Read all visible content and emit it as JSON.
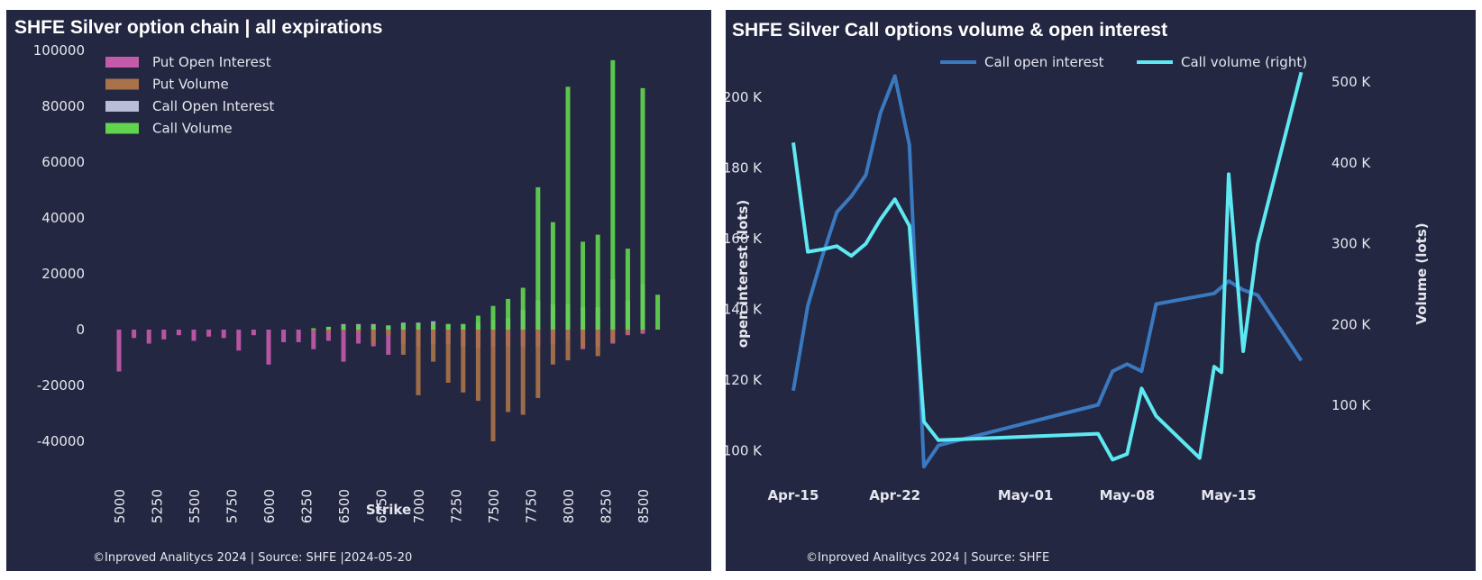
{
  "colors": {
    "background": "#232741",
    "put_open_interest": "#c45aa8",
    "put_volume": "#a8724a",
    "call_open_interest": "#b9bdd8",
    "call_volume": "#61d34e",
    "call_open_interest_line": "#3a78c0",
    "call_volume_line": "#5ee8f2"
  },
  "chart_data": [
    {
      "type": "bar",
      "title": "SHFE Silver option chain | all expirations",
      "xlabel": "Strike",
      "footer": "©Inproved Analitycs 2024 | Source: SHFE |2024-05-20",
      "ylim": [
        -50000,
        100000
      ],
      "y_ticks": [
        100000,
        80000,
        60000,
        40000,
        20000,
        0,
        -20000,
        -40000
      ],
      "x_ticks": [
        5000,
        5250,
        5500,
        5750,
        6000,
        6250,
        6500,
        6750,
        7000,
        7250,
        7500,
        7750,
        8000,
        8250,
        8500
      ],
      "legend_position": "top-left",
      "strikes": [
        5000,
        5100,
        5200,
        5300,
        5400,
        5500,
        5600,
        5700,
        5800,
        5900,
        6000,
        6100,
        6200,
        6300,
        6400,
        6500,
        6600,
        6700,
        6800,
        6900,
        7000,
        7100,
        7200,
        7300,
        7400,
        7500,
        7600,
        7700,
        7800,
        7900,
        8000,
        8100,
        8200,
        8300,
        8400,
        8500,
        8600
      ],
      "series": [
        {
          "name": "Put Open Interest",
          "values": [
            -15000,
            -3000,
            -5000,
            -3500,
            -2000,
            -4000,
            -2500,
            -3000,
            -7500,
            -2000,
            -12500,
            -4500,
            -4500,
            -7000,
            -4000,
            -11500,
            -5000,
            -6000,
            -9000,
            -5000,
            -6000,
            -5000,
            -5000,
            -6000,
            -6500,
            -6000,
            -6000,
            -6000,
            -6000,
            -5000,
            -4000,
            -7000,
            -6000,
            -5000,
            -2000,
            -1500,
            0
          ]
        },
        {
          "name": "Put Volume",
          "values": [
            0,
            0,
            0,
            0,
            0,
            0,
            0,
            0,
            0,
            0,
            0,
            0,
            0,
            -500,
            -1000,
            -500,
            -1000,
            -5000,
            -2000,
            -9000,
            -23500,
            -11500,
            -19000,
            -22500,
            -25500,
            -40000,
            -29500,
            -30500,
            -24500,
            -12500,
            -11000,
            -6500,
            -9500,
            -4500,
            -1500,
            -500,
            0
          ]
        },
        {
          "name": "Call Open Interest",
          "values": [
            0,
            0,
            0,
            0,
            0,
            0,
            0,
            0,
            0,
            0,
            0,
            0,
            0,
            0,
            1000,
            2000,
            2000,
            2000,
            1500,
            2500,
            2500,
            3000,
            2000,
            2000,
            2500,
            3500,
            4000,
            7000,
            10500,
            9000,
            9000,
            8000,
            8000,
            18000,
            10500,
            16500,
            0
          ]
        },
        {
          "name": "Call Volume",
          "values": [
            0,
            0,
            0,
            0,
            0,
            0,
            0,
            0,
            0,
            0,
            0,
            0,
            0,
            500,
            1000,
            1500,
            1500,
            1500,
            1500,
            2000,
            2000,
            2000,
            2000,
            2000,
            5000,
            8500,
            11000,
            15000,
            51000,
            38500,
            87000,
            31500,
            34000,
            96500,
            29000,
            86500,
            12500
          ]
        }
      ]
    },
    {
      "type": "line",
      "title": "SHFE Silver Call options volume & open interest",
      "ylabel": "open interest (lots)",
      "y2label": "Volume (lots)",
      "footer": "©Inproved Analitycs 2024 | Source: SHFE",
      "legend_position": "top",
      "ylim": [
        93000,
        215000
      ],
      "y2lim": [
        15000,
        530000
      ],
      "y_ticks": [
        "200 K",
        "180 K",
        "160 K",
        "140 K",
        "120 K",
        "100 K"
      ],
      "y_tick_values": [
        200000,
        180000,
        160000,
        140000,
        120000,
        100000
      ],
      "y2_ticks": [
        "500 K",
        "400 K",
        "300 K",
        "200 K",
        "100 K"
      ],
      "y2_tick_values": [
        500000,
        400000,
        300000,
        200000,
        100000
      ],
      "x_ticks": [
        "Apr-15",
        "Apr-22",
        "May-01",
        "May-08",
        "May-15"
      ],
      "x_tick_dates": [
        "2024-04-15",
        "2024-04-22",
        "2024-05-01",
        "2024-05-08",
        "2024-05-15"
      ],
      "xlim": [
        "2024-04-14",
        "2024-05-21"
      ],
      "series": [
        {
          "name": "Call open interest",
          "axis": "left",
          "x": [
            "2024-04-15",
            "2024-04-16",
            "2024-04-17",
            "2024-04-18",
            "2024-04-19",
            "2024-04-20",
            "2024-04-21",
            "2024-04-22",
            "2024-04-23",
            "2024-04-24",
            "2024-04-25",
            "2024-05-06",
            "2024-05-07",
            "2024-05-08",
            "2024-05-09",
            "2024-05-10",
            "2024-05-14",
            "2024-05-15",
            "2024-05-16",
            "2024-05-17",
            "2024-05-20"
          ],
          "values": [
            117000,
            141000,
            155000,
            167500,
            172000,
            178000,
            195500,
            206000,
            186500,
            95500,
            101500,
            113000,
            122500,
            124500,
            122500,
            141500,
            144500,
            148000,
            145500,
            144000,
            125500
          ]
        },
        {
          "name": "Call volume (right)",
          "axis": "right",
          "x": [
            "2024-04-15",
            "2024-04-16",
            "2024-04-17",
            "2024-04-18",
            "2024-04-19",
            "2024-04-20",
            "2024-04-21",
            "2024-04-22",
            "2024-04-23",
            "2024-04-24",
            "2024-04-25",
            "2024-05-06",
            "2024-05-07",
            "2024-05-08",
            "2024-05-09",
            "2024-05-10",
            "2024-05-13",
            "2024-05-14",
            "2024-05-14T12:00",
            "2024-05-15",
            "2024-05-16",
            "2024-05-17",
            "2024-05-20"
          ],
          "values": [
            425000,
            290000,
            293000,
            297000,
            285000,
            300000,
            330000,
            355000,
            322000,
            80000,
            57000,
            65000,
            33000,
            40000,
            121000,
            87000,
            35000,
            148000,
            141000,
            386000,
            167000,
            300000,
            512000
          ]
        }
      ]
    }
  ]
}
